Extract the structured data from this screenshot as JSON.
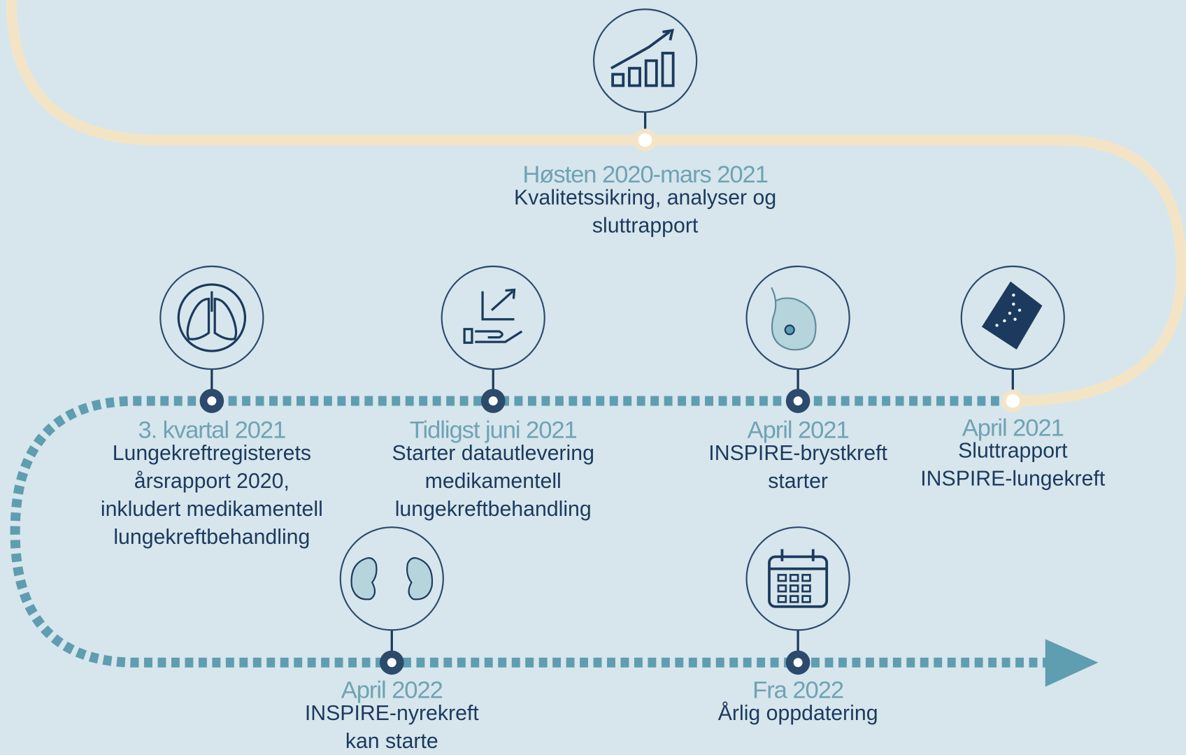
{
  "events": [
    {
      "date": "Høsten 2020-mars 2021",
      "lines": [
        "Kvalitetssikring, analyser og",
        "sluttrapport"
      ]
    },
    {
      "date": "3. kvartal 2021",
      "lines": [
        "Lungekreftregisterets",
        "årsrapport 2020,",
        "inkludert medikamentell",
        "lungekreftbehandling"
      ]
    },
    {
      "date": "Tidligst juni 2021",
      "lines": [
        "Starter datautlevering",
        "medikamentell",
        "lungekreftbehandling"
      ]
    },
    {
      "date": "April 2021",
      "lines": [
        "INSPIRE-brystkreft",
        "starter"
      ]
    },
    {
      "date": "April 2021",
      "lines": [
        "Sluttrapport",
        "INSPIRE-lungekreft"
      ]
    },
    {
      "date": "April 2022",
      "lines": [
        "INSPIRE-nyrekreft",
        "kan starte"
      ]
    },
    {
      "date": "Fra 2022",
      "lines": [
        "Årlig oppdatering"
      ]
    }
  ]
}
